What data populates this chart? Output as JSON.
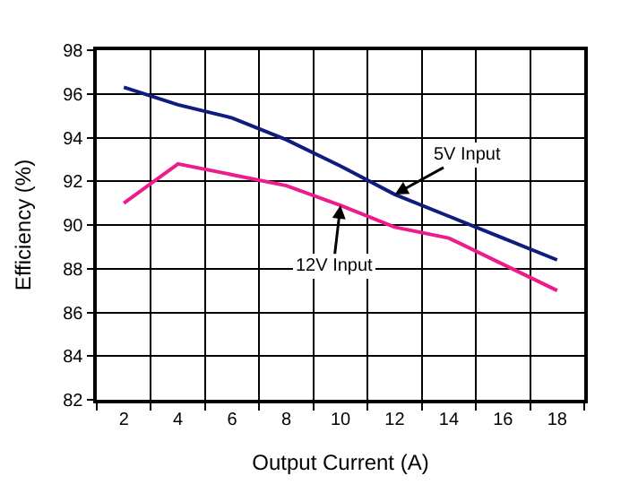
{
  "chart_data": {
    "type": "line",
    "xlabel": "Output Current (A)",
    "ylabel": "Efficiency (%)",
    "categories": [
      "2",
      "4",
      "6",
      "8",
      "10",
      "12",
      "14",
      "16",
      "18"
    ],
    "series": [
      {
        "name": "5V Input",
        "color": "#101c80",
        "values": [
          96.3,
          95.5,
          94.9,
          93.9,
          92.7,
          91.4,
          90.4,
          89.4,
          88.4
        ]
      },
      {
        "name": "12V Input",
        "color": "#ec1c8c",
        "values": [
          91.0,
          92.8,
          92.3,
          91.8,
          90.9,
          89.9,
          89.4,
          88.2,
          87.0
        ]
      }
    ],
    "ylim": [
      82,
      98
    ],
    "yticks": [
      82,
      84,
      86,
      88,
      90,
      92,
      94,
      96,
      98
    ],
    "grid": true,
    "legend": false,
    "marker": "none",
    "line_style": "solid"
  }
}
